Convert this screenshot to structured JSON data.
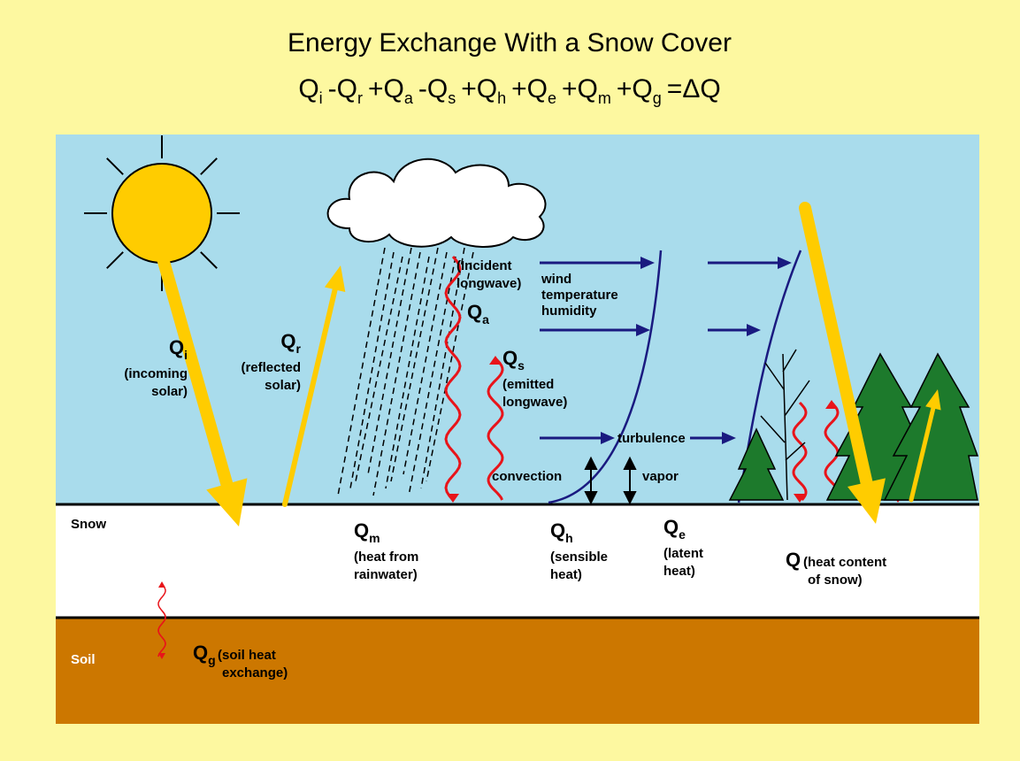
{
  "title": "Energy Exchange With a Snow Cover",
  "equation": {
    "terms": [
      {
        "base": "Q",
        "sub": "i"
      },
      {
        "base": "Q",
        "sub": "r"
      },
      {
        "base": "Q",
        "sub": "a"
      },
      {
        "base": "Q",
        "sub": "s"
      },
      {
        "base": "Q",
        "sub": "h"
      },
      {
        "base": "Q",
        "sub": "e"
      },
      {
        "base": "Q",
        "sub": "m"
      },
      {
        "base": "Q",
        "sub": "g"
      }
    ],
    "operators": [
      "-",
      "+",
      "-",
      "+",
      "+",
      "+",
      "+",
      "="
    ],
    "result": "ΔQ"
  },
  "labels": {
    "incoming": {
      "base": "Q",
      "sub": "i",
      "lines": [
        "(incoming",
        "solar)"
      ]
    },
    "reflected": {
      "base": "Q",
      "sub": "r",
      "lines": [
        "(reflected",
        "solar)"
      ]
    },
    "incident": {
      "base": "Q",
      "sub": "a",
      "lines": [
        "(Incident",
        "longwave)"
      ]
    },
    "emitted": {
      "base": "Q",
      "sub": "s",
      "lines": [
        "(emitted",
        "longwave)"
      ]
    },
    "rainwater": {
      "base": "Q",
      "sub": "m",
      "lines": [
        "(heat from",
        "rainwater)"
      ]
    },
    "sensible": {
      "base": "Q",
      "sub": "h",
      "lines": [
        "(sensible",
        "heat)"
      ]
    },
    "latent": {
      "base": "Q",
      "sub": "e",
      "lines": [
        "(latent",
        "heat)"
      ]
    },
    "content": {
      "base": "Q",
      "lines": [
        "(heat content",
        "of snow)"
      ]
    },
    "soil_heat": {
      "base": "Q",
      "sub": "g",
      "lines": [
        "(soil heat",
        "exchange)"
      ]
    }
  },
  "terms": {
    "wind": "wind",
    "temperature": "temperature",
    "humidity": "humidity",
    "turbulence": "turbulence",
    "convection": "convection",
    "vapor": "vapor"
  },
  "layers": {
    "snow": "Snow",
    "soil": "Soil"
  }
}
